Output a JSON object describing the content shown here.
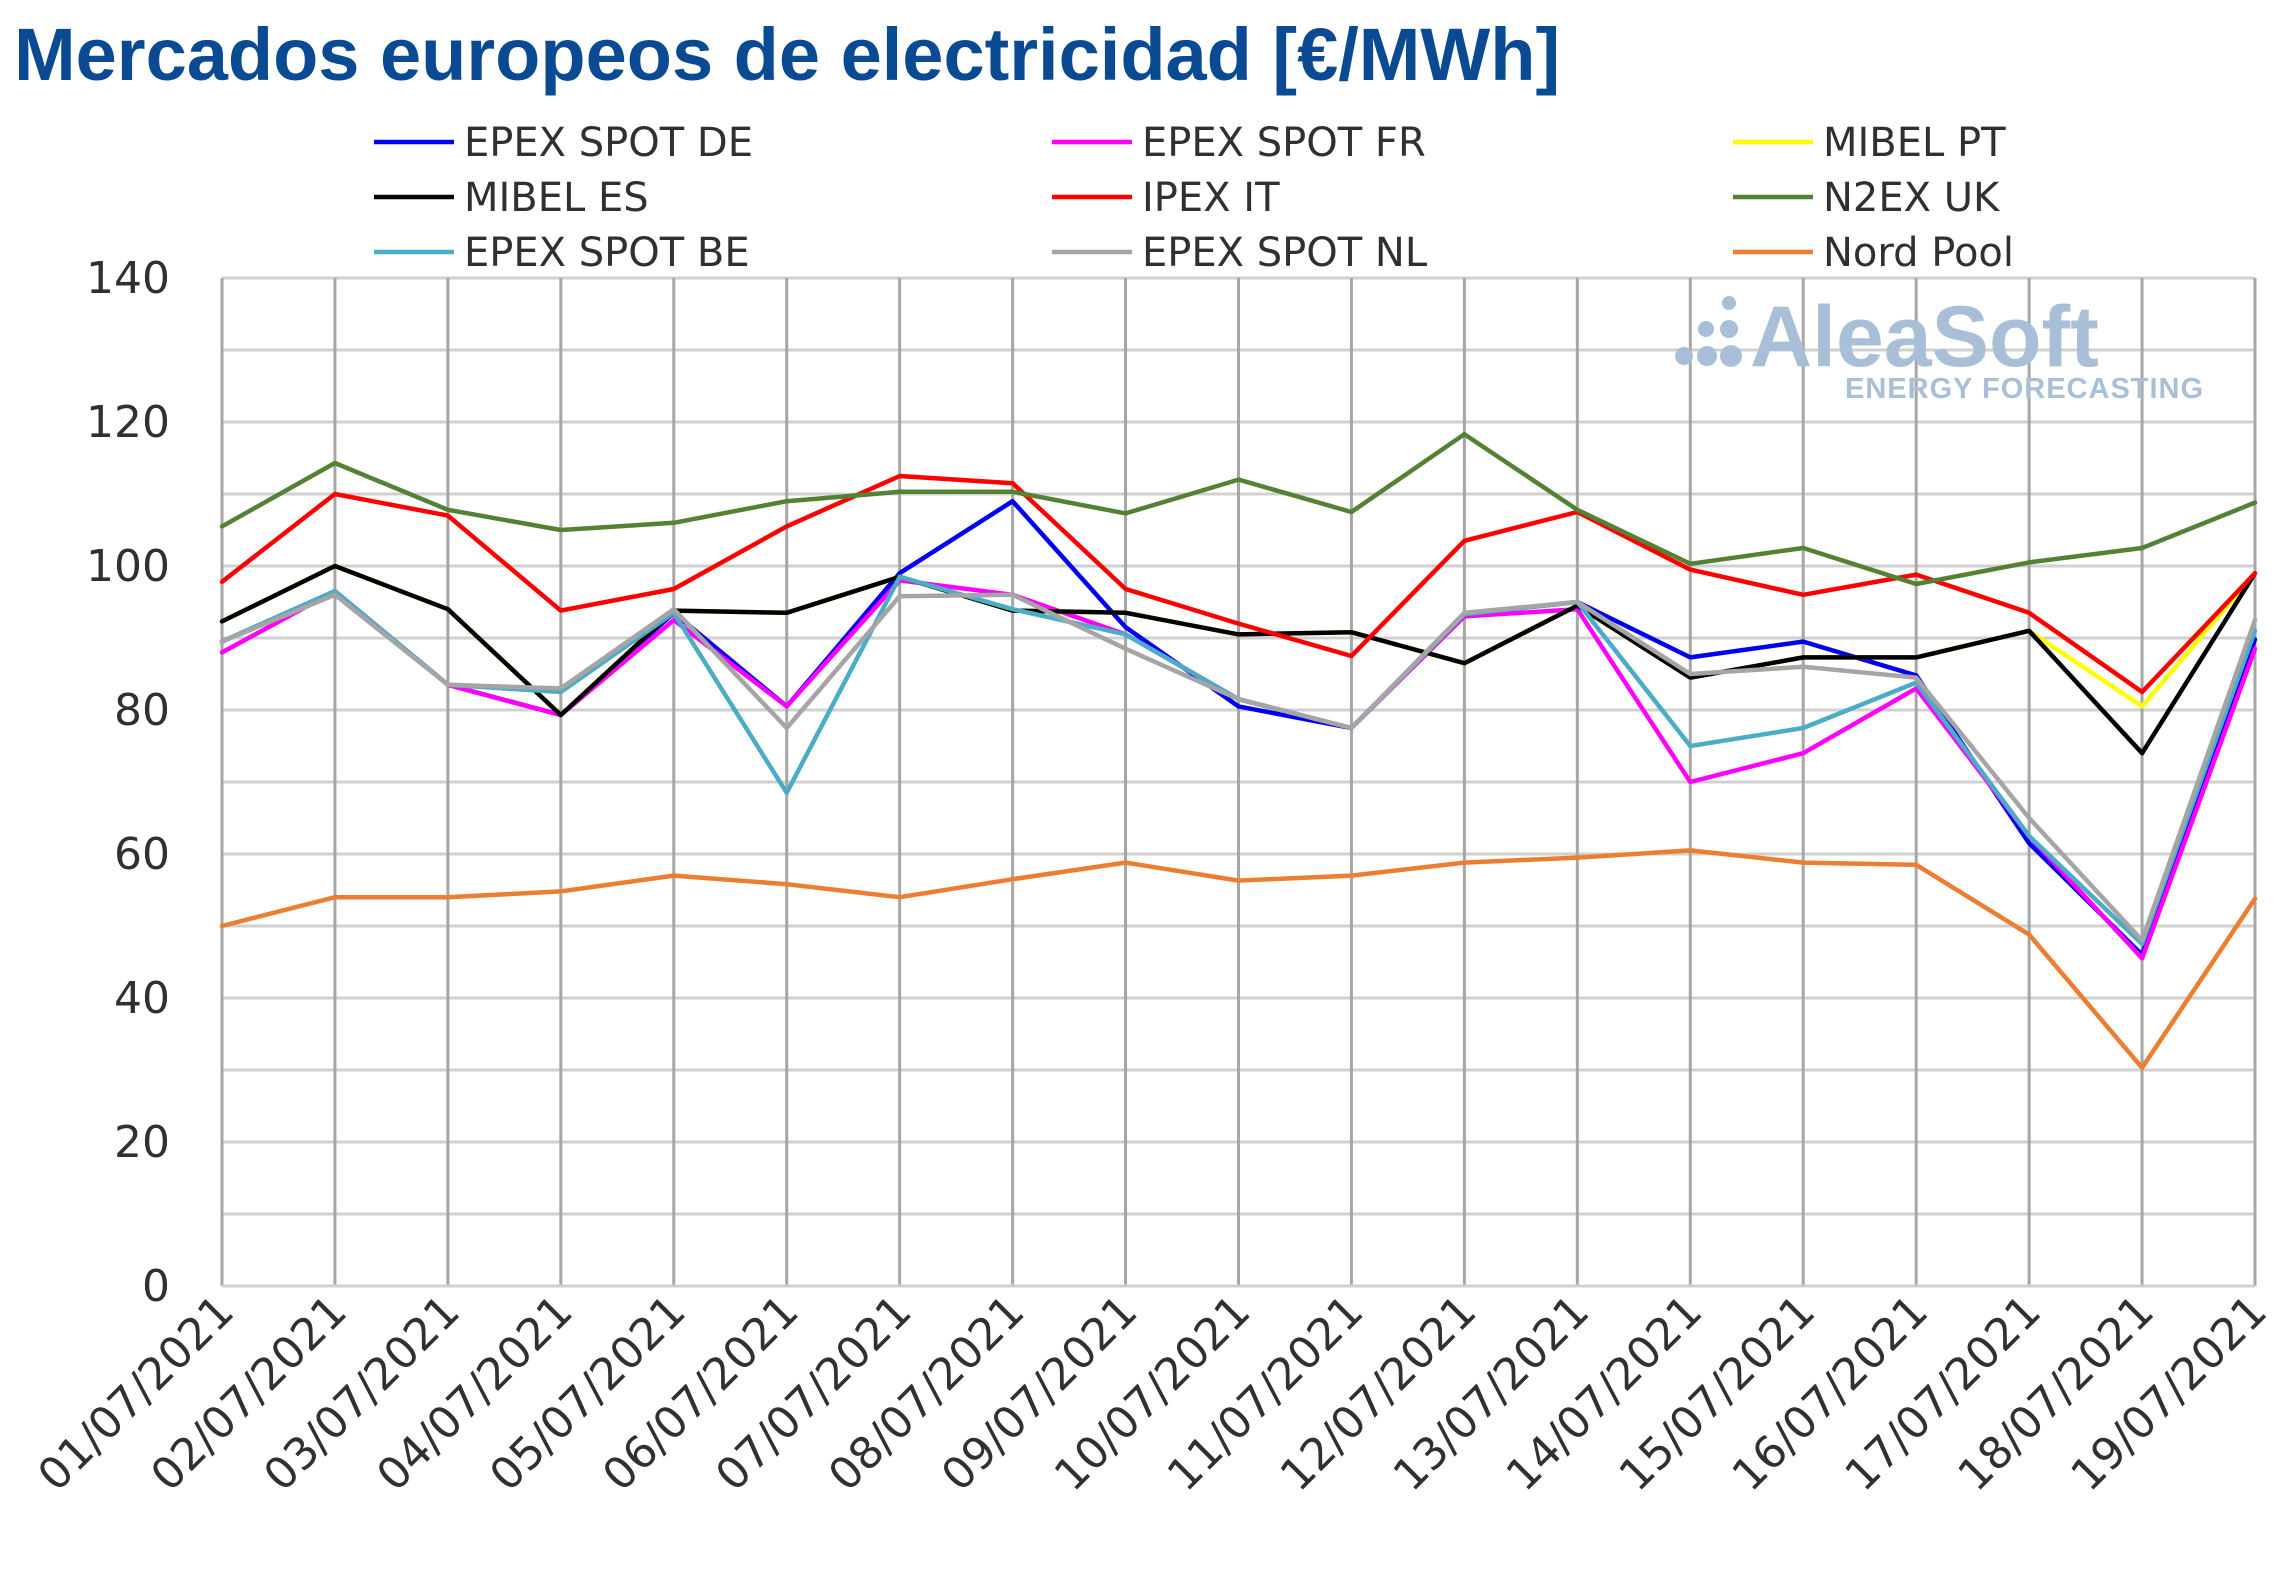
{
  "title": "Mercados europeos de electricidad [€/MWh]",
  "brand": {
    "name": "AleaSoft",
    "tagline": "ENERGY FORECASTING",
    "color": "#a9bfd8"
  },
  "chart_data": {
    "type": "line",
    "title": "Mercados europeos de electricidad [€/MWh]",
    "xlabel": "",
    "ylabel": "",
    "ylim": [
      0,
      140
    ],
    "yticks": [
      0,
      20,
      40,
      60,
      80,
      100,
      120,
      140
    ],
    "grid": true,
    "legend_position": "top",
    "categories": [
      "01/07/2021",
      "02/07/2021",
      "03/07/2021",
      "04/07/2021",
      "05/07/2021",
      "06/07/2021",
      "07/07/2021",
      "08/07/2021",
      "09/07/2021",
      "10/07/2021",
      "11/07/2021",
      "12/07/2021",
      "13/07/2021",
      "14/07/2021",
      "15/07/2021",
      "16/07/2021",
      "17/07/2021",
      "18/07/2021",
      "19/07/2021"
    ],
    "series": [
      {
        "name": "EPEX SPOT DE",
        "color": "#0000ee",
        "values": [
          89.5,
          96.5,
          83.5,
          79.3,
          93.5,
          80.5,
          99.0,
          109.0,
          91.5,
          80.5,
          77.5,
          93.3,
          95.0,
          87.3,
          89.5,
          84.8,
          61.5,
          46.0,
          89.8
        ]
      },
      {
        "name": "EPEX SPOT FR",
        "color": "#ff00ff",
        "values": [
          88.0,
          96.5,
          83.5,
          79.3,
          92.5,
          80.5,
          98.0,
          96.0,
          90.5,
          81.5,
          77.5,
          93.0,
          94.0,
          70.0,
          74.0,
          83.0,
          62.5,
          45.5,
          88.5
        ]
      },
      {
        "name": "MIBEL PT",
        "color": "#ffff00",
        "values": [
          92.3,
          100.0,
          94.0,
          79.3,
          93.8,
          93.5,
          98.5,
          93.8,
          93.5,
          90.5,
          90.8,
          86.5,
          94.5,
          84.5,
          87.3,
          87.3,
          91.0,
          80.5,
          99.0
        ]
      },
      {
        "name": "MIBEL ES",
        "color": "#000000",
        "values": [
          92.3,
          100.0,
          94.0,
          79.3,
          93.8,
          93.5,
          98.5,
          93.8,
          93.5,
          90.5,
          90.8,
          86.5,
          94.5,
          84.5,
          87.3,
          87.3,
          91.0,
          74.0,
          99.0
        ]
      },
      {
        "name": "IPEX IT",
        "color": "#ff0000",
        "values": [
          97.8,
          110.0,
          107.0,
          93.8,
          96.8,
          105.5,
          112.5,
          111.5,
          96.8,
          92.0,
          87.5,
          103.5,
          107.5,
          99.5,
          96.0,
          98.8,
          93.5,
          82.5,
          99.0
        ]
      },
      {
        "name": "N2EX UK",
        "color": "#548235",
        "values": [
          105.5,
          114.3,
          107.8,
          105.0,
          106.0,
          109.0,
          110.3,
          110.3,
          107.3,
          112.0,
          107.5,
          118.3,
          107.8,
          100.3,
          102.5,
          97.5,
          100.5,
          102.5,
          108.8
        ]
      },
      {
        "name": "EPEX SPOT BE",
        "color": "#4bacc6",
        "values": [
          89.5,
          96.5,
          83.5,
          82.5,
          93.5,
          68.5,
          98.5,
          94.0,
          90.5,
          81.5,
          77.5,
          93.3,
          95.0,
          75.0,
          77.5,
          83.8,
          62.5,
          47.5,
          91.0
        ]
      },
      {
        "name": "EPEX SPOT NL",
        "color": "#a5a5a5",
        "values": [
          89.5,
          96.0,
          83.5,
          83.0,
          94.0,
          77.5,
          95.8,
          96.0,
          88.5,
          81.5,
          77.5,
          93.5,
          95.0,
          85.0,
          86.0,
          84.5,
          65.0,
          48.0,
          92.5
        ]
      },
      {
        "name": "Nord Pool",
        "color": "#ed7d31",
        "values": [
          50.0,
          54.0,
          54.0,
          54.8,
          57.0,
          55.8,
          54.0,
          56.5,
          58.8,
          56.3,
          57.0,
          58.8,
          59.5,
          60.5,
          58.8,
          58.5,
          48.8,
          30.3,
          53.8
        ]
      }
    ]
  }
}
